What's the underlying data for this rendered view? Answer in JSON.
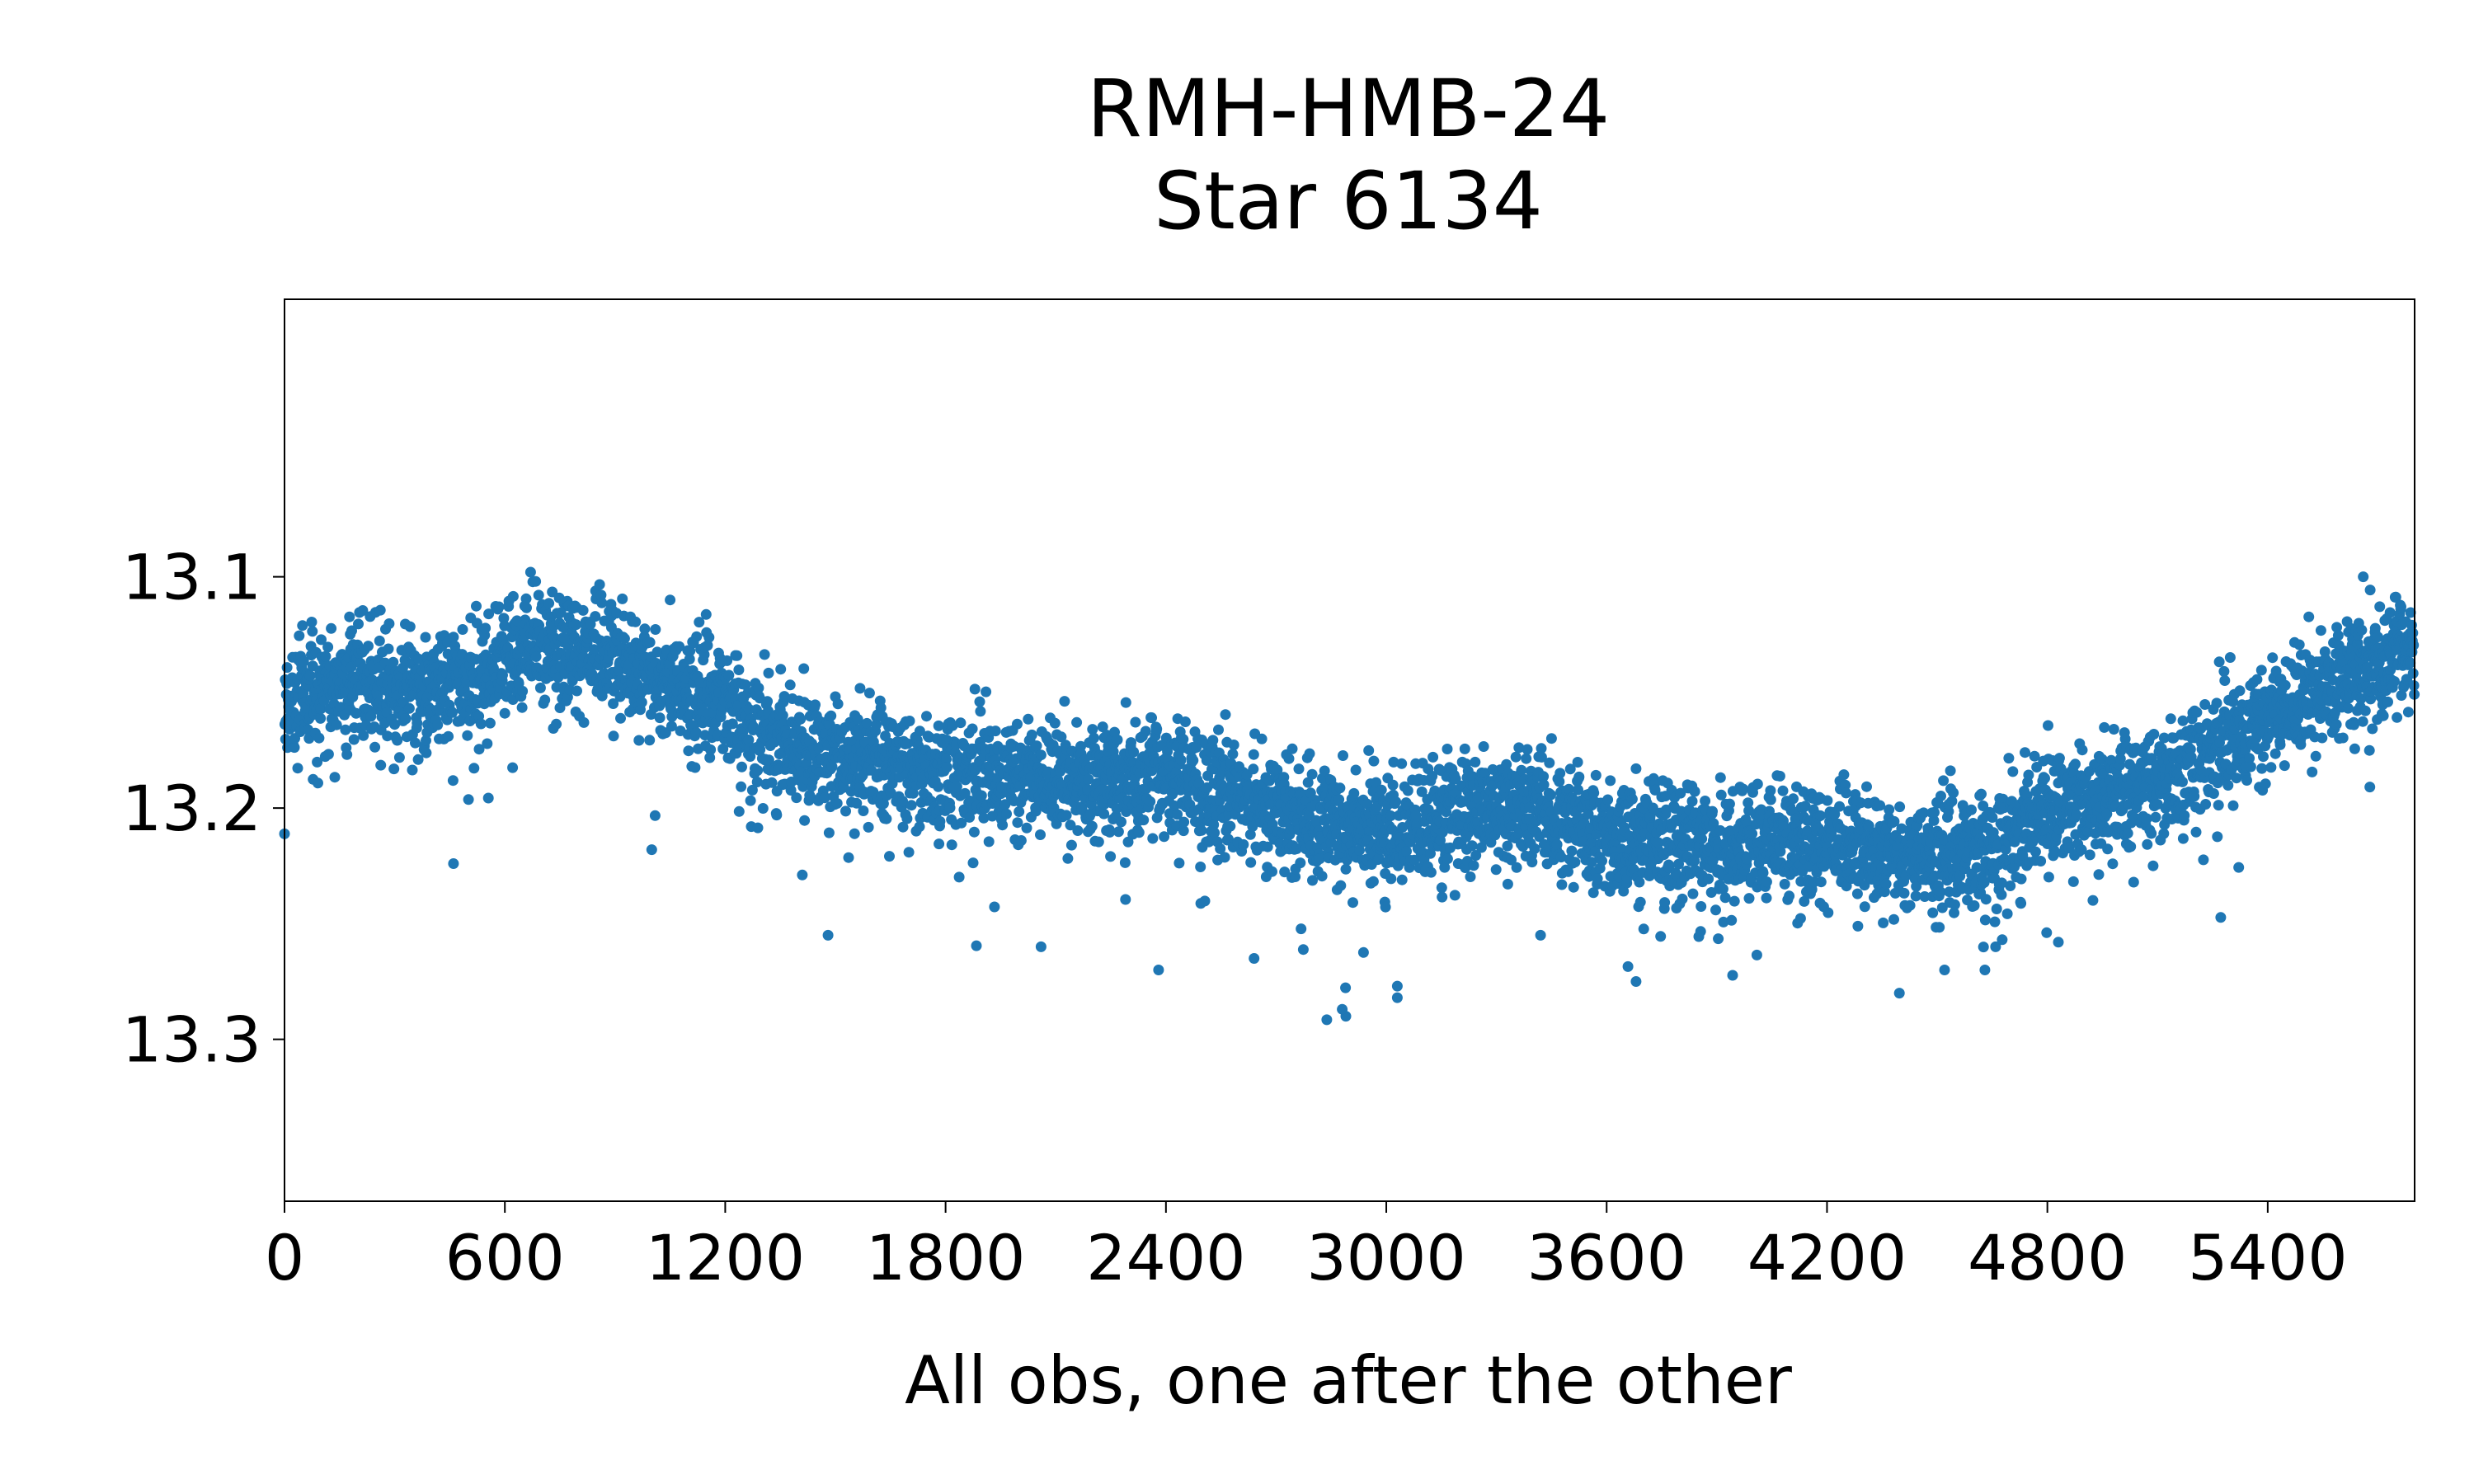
{
  "chart_data": {
    "type": "scatter",
    "title": "RMH-HMB-24",
    "subtitle": "Star 6134",
    "xlabel": "All obs, one after the other",
    "ylabel": "",
    "xlim": [
      0,
      5800
    ],
    "ylim": [
      13.37,
      12.98
    ],
    "y_inverted": true,
    "grid": false,
    "marker_color": "#1f77b4",
    "x_ticks": [
      0,
      600,
      1200,
      1800,
      2400,
      3000,
      3600,
      4200,
      4800,
      5400
    ],
    "x_tick_labels": [
      "0",
      "600",
      "1200",
      "1800",
      "2400",
      "3000",
      "3600",
      "4200",
      "4800",
      "5400"
    ],
    "y_ticks": [
      13.1,
      13.2,
      13.3
    ],
    "y_tick_labels": [
      "13.1",
      "13.2",
      "13.3"
    ],
    "n_points": 5800,
    "trend_x": [
      0,
      200,
      400,
      600,
      700,
      900,
      1100,
      1200,
      1400,
      1600,
      1800,
      2000,
      2200,
      2400,
      2600,
      2800,
      3000,
      3200,
      3400,
      3600,
      3800,
      4000,
      4200,
      4400,
      4600,
      4800,
      5000,
      5200,
      5400,
      5600,
      5800
    ],
    "trend_y": [
      13.15,
      13.145,
      13.15,
      13.135,
      13.13,
      13.135,
      13.15,
      13.155,
      13.175,
      13.18,
      13.185,
      13.185,
      13.19,
      13.185,
      13.195,
      13.205,
      13.21,
      13.2,
      13.2,
      13.21,
      13.215,
      13.215,
      13.215,
      13.22,
      13.22,
      13.2,
      13.195,
      13.18,
      13.16,
      13.145,
      13.13
    ],
    "scatter_sigma": 0.012,
    "outliers": [
      {
        "x": 460,
        "y": 13.224
      },
      {
        "x": 1480,
        "y": 13.255
      },
      {
        "x": 2380,
        "y": 13.27
      },
      {
        "x": 2890,
        "y": 13.29
      },
      {
        "x": 2880,
        "y": 13.287
      },
      {
        "x": 3030,
        "y": 13.282
      },
      {
        "x": 3030,
        "y": 13.277
      },
      {
        "x": 3680,
        "y": 13.275
      },
      {
        "x": 4520,
        "y": 13.27
      },
      {
        "x": 4630,
        "y": 13.27
      },
      {
        "x": 4830,
        "y": 13.258
      },
      {
        "x": 2640,
        "y": 13.265
      },
      {
        "x": 2060,
        "y": 13.26
      },
      {
        "x": 3420,
        "y": 13.255
      },
      {
        "x": 5660,
        "y": 13.1
      },
      {
        "x": 670,
        "y": 13.098
      },
      {
        "x": 1050,
        "y": 13.11
      },
      {
        "x": 1000,
        "y": 13.218
      }
    ]
  }
}
